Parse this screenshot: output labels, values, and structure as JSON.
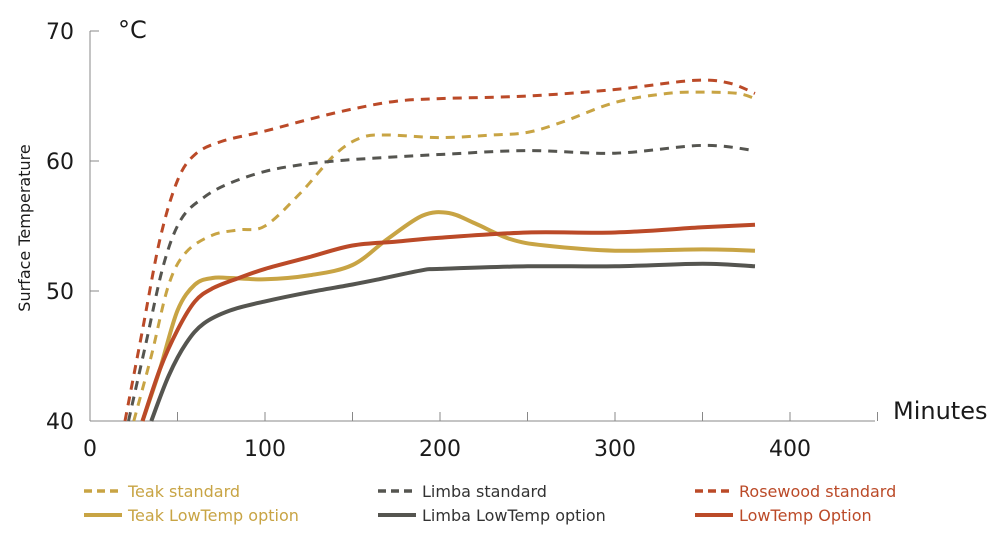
{
  "chart_data": {
    "type": "line",
    "title": "",
    "xlabel": "Minutes",
    "ylabel": "Surface Temperature",
    "yunit": "°C",
    "xlim": [
      0,
      450
    ],
    "ylim": [
      40,
      70
    ],
    "xticks": [
      0,
      100,
      200,
      300,
      400
    ],
    "xtick_labels": [
      "0",
      "100",
      "200",
      "300",
      "400"
    ],
    "yticks": [
      40,
      50,
      60,
      70
    ],
    "ytick_labels": [
      "40",
      "50",
      "60",
      "70"
    ],
    "grid": false,
    "legend_position": "bottom",
    "series": [
      {
        "name": "Teak standard",
        "style": "dashed",
        "color": "#c8a444",
        "x": [
          25,
          35,
          45,
          55,
          70,
          85,
          100,
          120,
          140,
          155,
          170,
          200,
          230,
          250,
          270,
          300,
          330,
          350,
          370,
          380
        ],
        "y": [
          40,
          45,
          50.5,
          53,
          54.3,
          54.7,
          55,
          57.5,
          60.5,
          61.8,
          62,
          61.8,
          62,
          62.2,
          63,
          64.5,
          65.2,
          65.3,
          65.2,
          64.8
        ]
      },
      {
        "name": "Limba standard",
        "style": "dashed",
        "color": "#555550",
        "x": [
          22,
          32,
          42,
          52,
          65,
          80,
          100,
          120,
          140,
          160,
          200,
          250,
          300,
          350,
          380
        ],
        "y": [
          40,
          46,
          52,
          55.5,
          57.2,
          58.3,
          59.2,
          59.7,
          60,
          60.2,
          60.5,
          60.8,
          60.6,
          61.2,
          60.8
        ]
      },
      {
        "name": "Rosewood standard",
        "style": "dashed",
        "color": "#bb4a28",
        "x": [
          20,
          30,
          40,
          50,
          60,
          75,
          100,
          125,
          150,
          175,
          200,
          250,
          300,
          345,
          365,
          380
        ],
        "y": [
          40,
          47,
          54,
          58.5,
          60.5,
          61.5,
          62.3,
          63.2,
          64,
          64.6,
          64.8,
          65,
          65.5,
          66.2,
          66,
          65.2
        ]
      },
      {
        "name": "Teak LowTemp option",
        "style": "solid",
        "color": "#c8a444",
        "x": [
          30,
          40,
          50,
          60,
          70,
          80,
          100,
          125,
          150,
          170,
          190,
          205,
          220,
          240,
          260,
          300,
          350,
          380
        ],
        "y": [
          40,
          44,
          48.5,
          50.5,
          51,
          51,
          50.9,
          51.2,
          52,
          54,
          55.8,
          56,
          55.2,
          54,
          53.5,
          53.1,
          53.2,
          53.1
        ]
      },
      {
        "name": "Limba LowTemp option",
        "style": "solid",
        "color": "#555550",
        "x": [
          35,
          45,
          55,
          65,
          80,
          100,
          125,
          150,
          165,
          190,
          200,
          250,
          300,
          350,
          380
        ],
        "y": [
          40,
          43.5,
          46,
          47.5,
          48.5,
          49.2,
          49.9,
          50.5,
          50.9,
          51.6,
          51.7,
          51.9,
          51.9,
          52.1,
          51.9
        ]
      },
      {
        "name": "LowTemp Option",
        "style": "solid",
        "color": "#bb4a28",
        "x": [
          30,
          40,
          50,
          60,
          70,
          85,
          100,
          125,
          150,
          175,
          200,
          250,
          300,
          350,
          380
        ],
        "y": [
          40,
          44,
          47,
          49.2,
          50.2,
          51,
          51.7,
          52.6,
          53.5,
          53.8,
          54.1,
          54.5,
          54.5,
          54.9,
          55.1
        ]
      }
    ]
  }
}
